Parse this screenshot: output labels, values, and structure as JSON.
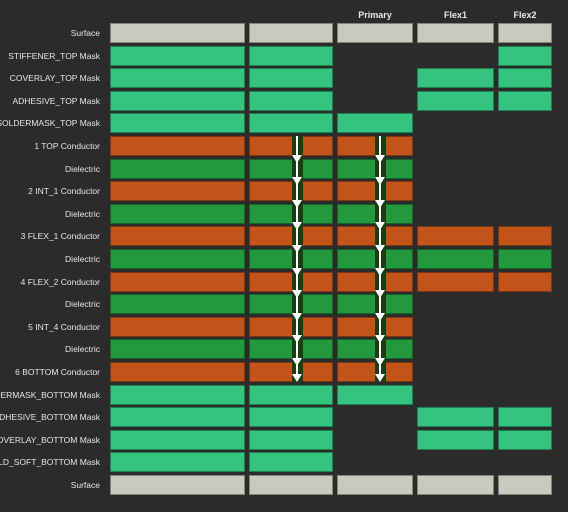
{
  "headers": {
    "primary": "Primary",
    "flex1": "Flex1",
    "flex2": "Flex2"
  },
  "colors": {
    "surface": "#c9c9bd",
    "mask": "#35c47f",
    "conductor": "#c4531a",
    "dielectric": "#22993d",
    "via_bg": "#1b3d12",
    "via_arrow": "#ffffff"
  },
  "rows": [
    {
      "label": "Surface",
      "type": "surface",
      "cols": [
        1,
        1,
        1,
        1,
        1
      ]
    },
    {
      "label": "STIFFENER_TOP Mask",
      "type": "mask",
      "cols": [
        1,
        1,
        0,
        0,
        1
      ]
    },
    {
      "label": "COVERLAY_TOP Mask",
      "type": "mask",
      "cols": [
        1,
        1,
        0,
        1,
        1
      ]
    },
    {
      "label": "ADHESIVE_TOP Mask",
      "type": "mask",
      "cols": [
        1,
        1,
        0,
        1,
        1
      ]
    },
    {
      "label": "SOLDERMASK_TOP Mask",
      "type": "mask",
      "cols": [
        1,
        1,
        1,
        0,
        0
      ]
    },
    {
      "label": "1    TOP Conductor",
      "type": "conductor",
      "cols": [
        1,
        1,
        1,
        0,
        0
      ]
    },
    {
      "label": "Dielectric",
      "type": "dielectric",
      "cols": [
        1,
        1,
        1,
        0,
        0
      ]
    },
    {
      "label": "2    INT_1 Conductor",
      "type": "conductor",
      "cols": [
        1,
        1,
        1,
        0,
        0
      ]
    },
    {
      "label": "Dielectric",
      "type": "dielectric",
      "cols": [
        1,
        1,
        1,
        0,
        0
      ]
    },
    {
      "label": "3    FLEX_1 Conductor",
      "type": "conductor",
      "cols": [
        1,
        1,
        1,
        1,
        1
      ]
    },
    {
      "label": "Dielectric",
      "type": "dielectric",
      "cols": [
        1,
        1,
        1,
        1,
        1
      ]
    },
    {
      "label": "4    FLEX_2 Conductor",
      "type": "conductor",
      "cols": [
        1,
        1,
        1,
        1,
        1
      ]
    },
    {
      "label": "Dielectric",
      "type": "dielectric",
      "cols": [
        1,
        1,
        1,
        0,
        0
      ]
    },
    {
      "label": "5    INT_4 Conductor",
      "type": "conductor",
      "cols": [
        1,
        1,
        1,
        0,
        0
      ]
    },
    {
      "label": "Dielectric",
      "type": "dielectric",
      "cols": [
        1,
        1,
        1,
        0,
        0
      ]
    },
    {
      "label": "6    BOTTOM Conductor",
      "type": "conductor",
      "cols": [
        1,
        1,
        1,
        0,
        0
      ]
    },
    {
      "label": "SOLDERMASK_BOTTOM Mask",
      "type": "mask",
      "cols": [
        1,
        1,
        1,
        0,
        0
      ]
    },
    {
      "label": "ADHESIVE_BOTTOM Mask",
      "type": "mask",
      "cols": [
        1,
        1,
        0,
        1,
        1
      ]
    },
    {
      "label": "COVERLAY_BOTTOM Mask",
      "type": "mask",
      "cols": [
        1,
        1,
        0,
        1,
        1
      ]
    },
    {
      "label": "HOLD_SOFT_BOTTOM Mask",
      "type": "mask",
      "cols": [
        1,
        1,
        0,
        0,
        0
      ]
    },
    {
      "label": "Surface",
      "type": "surface",
      "cols": [
        1,
        1,
        1,
        1,
        1
      ]
    }
  ]
}
